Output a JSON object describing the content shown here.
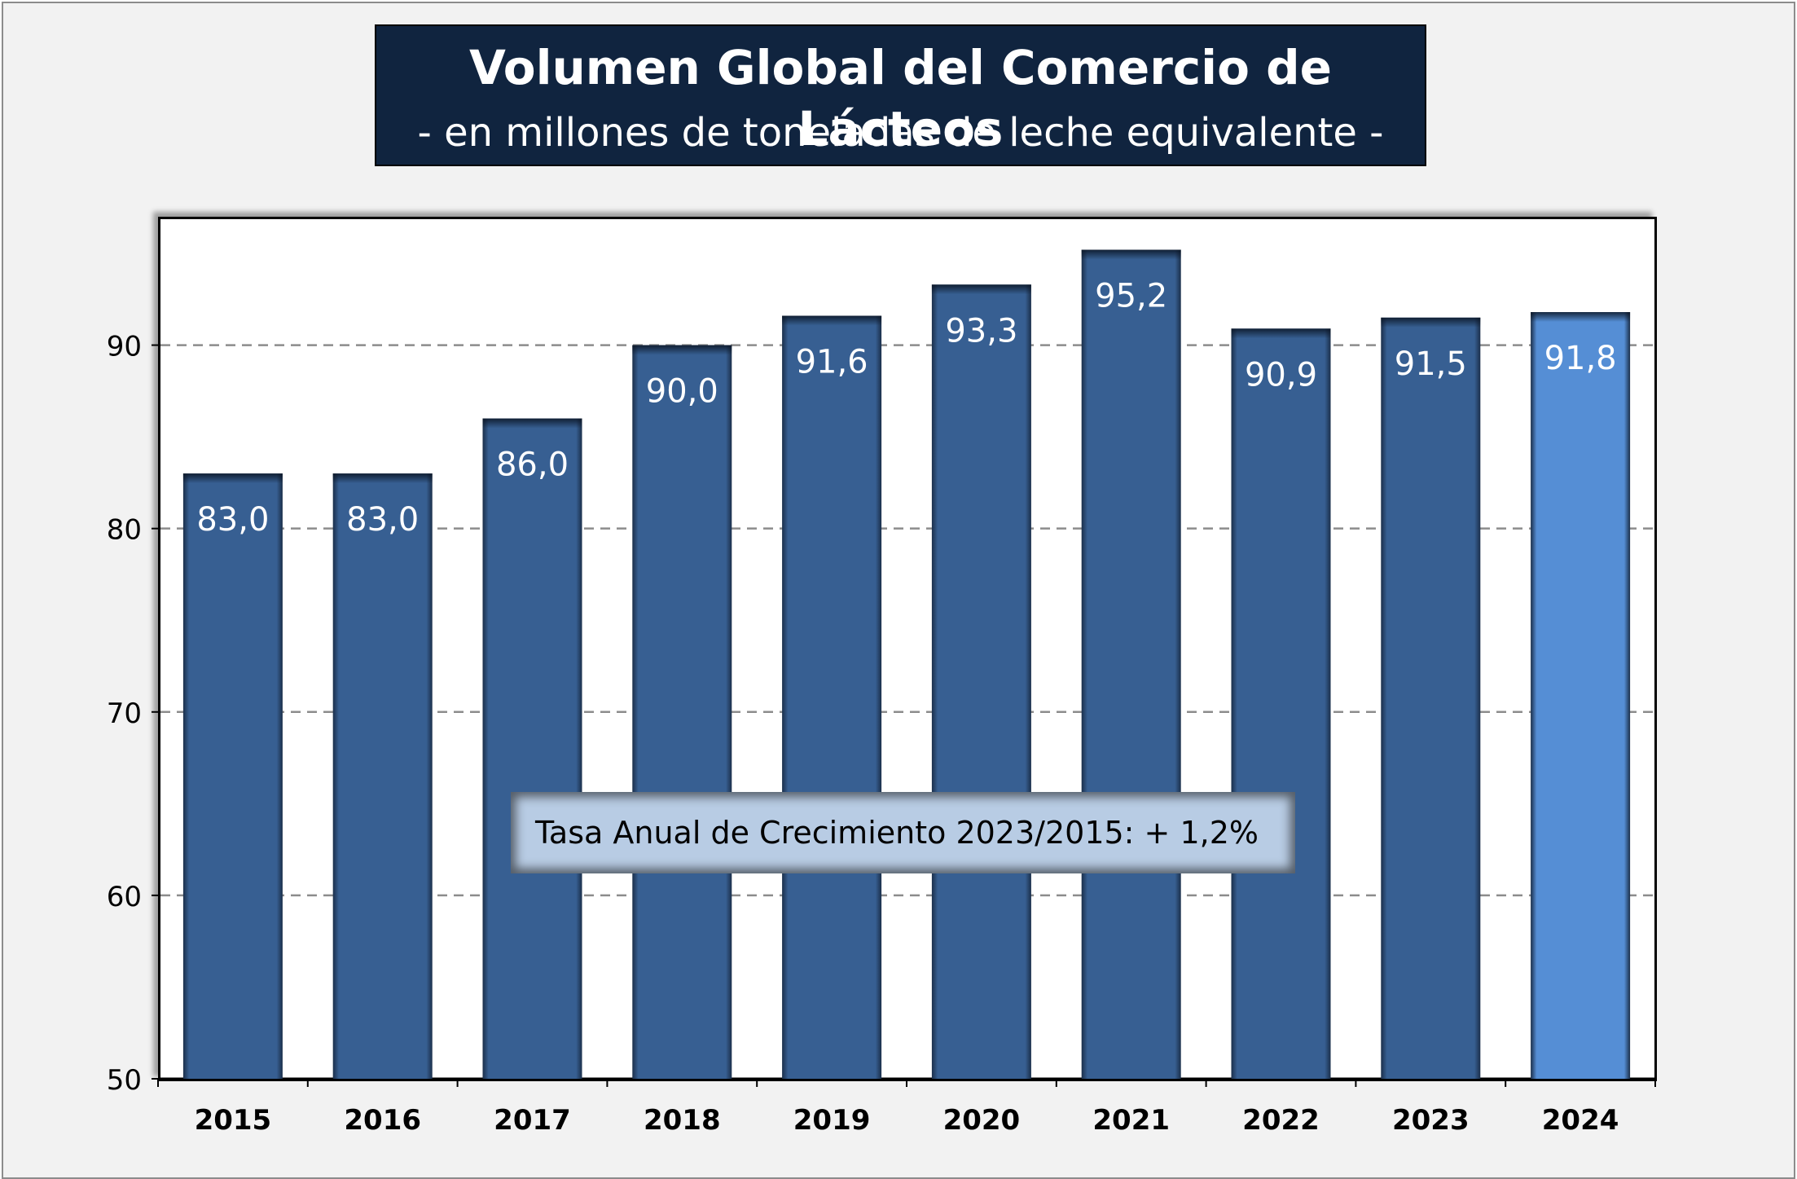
{
  "title": "Volumen Global del Comercio de Lácteos",
  "subtitle": "- en millones de toneladas de leche equivalente -",
  "annotation": "Tasa Anual de Crecimiento 2023/2015: + 1,2%",
  "colors": {
    "bar": "#375f92",
    "bar_highlight": "#558ed5",
    "title_bg": "#10243f",
    "annotation_bg": "#b8cce4"
  },
  "chart_data": {
    "type": "bar",
    "title": "Volumen Global del Comercio de Lácteos",
    "subtitle": "- en millones de toneladas de leche equivalente -",
    "categories": [
      "2015",
      "2016",
      "2017",
      "2018",
      "2019",
      "2020",
      "2021",
      "2022",
      "2023",
      "2024"
    ],
    "values": [
      83.0,
      83.0,
      86.0,
      90.0,
      91.6,
      93.3,
      95.2,
      90.9,
      91.5,
      91.8
    ],
    "data_labels": [
      "83,0",
      "83,0",
      "86,0",
      "90,0",
      "91,6",
      "93,3",
      "95,2",
      "90,9",
      "91,5",
      "91,8"
    ],
    "highlight_category": "2024",
    "ylim": [
      50,
      97
    ],
    "yticks": [
      50,
      60,
      70,
      80,
      90
    ],
    "grid": "dashed horizontal",
    "xlabel": "",
    "ylabel": ""
  }
}
